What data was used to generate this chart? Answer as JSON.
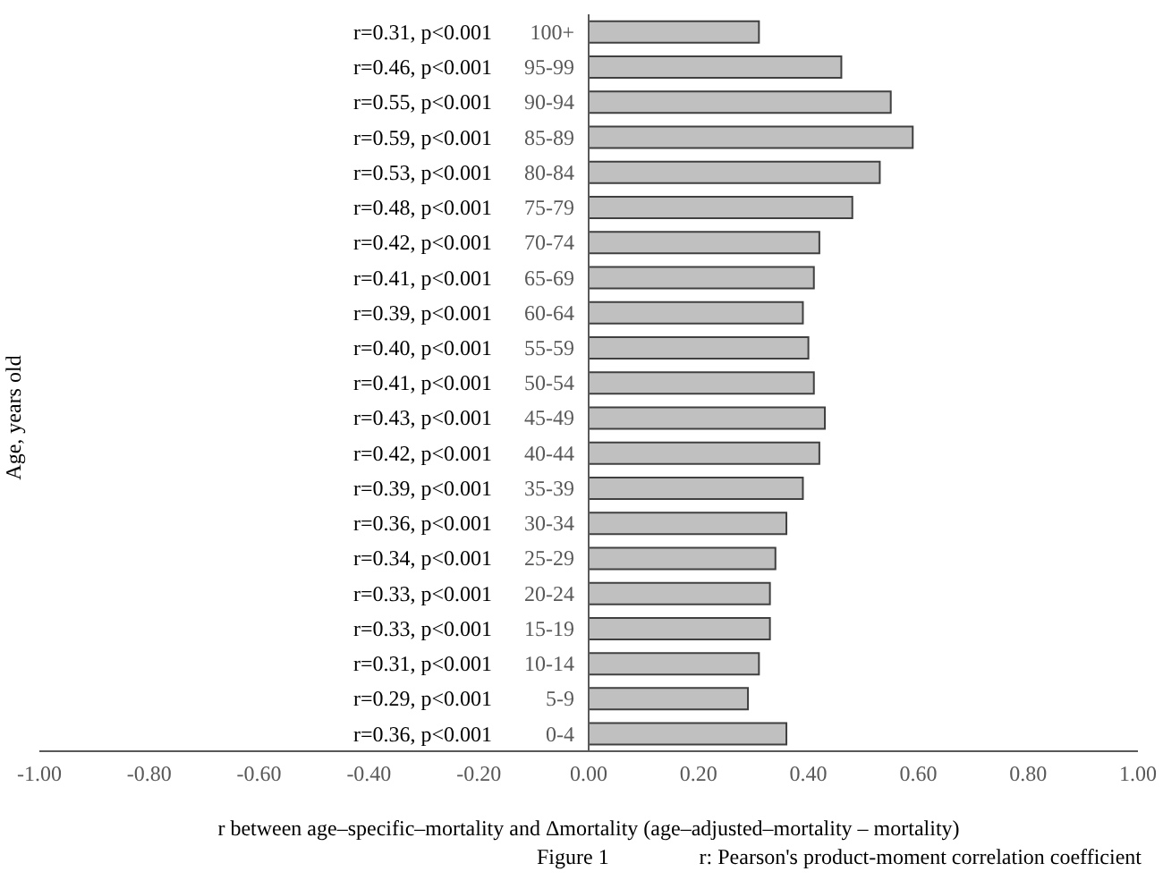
{
  "chart_data": {
    "type": "bar",
    "orientation": "horizontal",
    "xlabel": "r between age–specific–mortality and Δmortality (age–adjusted–mortality – mortality)",
    "ylabel": "Age, years old",
    "annotations": [
      "Figure 1",
      "r: Pearson's product-moment correlation coefficient"
    ],
    "categories": [
      "100+",
      "95-99",
      "90-94",
      "85-89",
      "80-84",
      "75-79",
      "70-74",
      "65-69",
      "60-64",
      "55-59",
      "50-54",
      "45-49",
      "40-44",
      "35-39",
      "30-34",
      "25-29",
      "20-24",
      "15-19",
      "10-14",
      "5-9",
      "0-4"
    ],
    "values": [
      0.31,
      0.46,
      0.55,
      0.59,
      0.53,
      0.48,
      0.42,
      0.41,
      0.39,
      0.4,
      0.41,
      0.43,
      0.42,
      0.39,
      0.36,
      0.34,
      0.33,
      0.33,
      0.31,
      0.29,
      0.36
    ],
    "value_labels": [
      "r=0.31, p<0.001",
      "r=0.46, p<0.001",
      "r=0.55, p<0.001",
      "r=0.59, p<0.001",
      "r=0.53, p<0.001",
      "r=0.48, p<0.001",
      "r=0.42, p<0.001",
      "r=0.41, p<0.001",
      "r=0.39, p<0.001",
      "r=0.40, p<0.001",
      "r=0.41, p<0.001",
      "r=0.43, p<0.001",
      "r=0.42, p<0.001",
      "r=0.39, p<0.001",
      "r=0.36, p<0.001",
      "r=0.34, p<0.001",
      "r=0.33, p<0.001",
      "r=0.33, p<0.001",
      "r=0.31, p<0.001",
      "r=0.29, p<0.001",
      "r=0.36, p<0.001"
    ],
    "color": "#c0c0c0",
    "xlim": [
      -1,
      1
    ],
    "xticks": [
      {
        "value": -1,
        "label": "-1.00"
      },
      {
        "value": -0.8,
        "label": "-0.80"
      },
      {
        "value": -0.6,
        "label": "-0.60"
      },
      {
        "value": -0.4,
        "label": "-0.40"
      },
      {
        "value": -0.2,
        "label": "-0.20"
      },
      {
        "value": 0,
        "label": "0.00"
      },
      {
        "value": 0.2,
        "label": "0.20"
      },
      {
        "value": 0.4,
        "label": "0.40"
      },
      {
        "value": 0.6,
        "label": "0.60"
      },
      {
        "value": 0.8,
        "label": "0.80"
      },
      {
        "value": 1,
        "label": "1.00"
      }
    ],
    "grid": false,
    "legend": false
  }
}
